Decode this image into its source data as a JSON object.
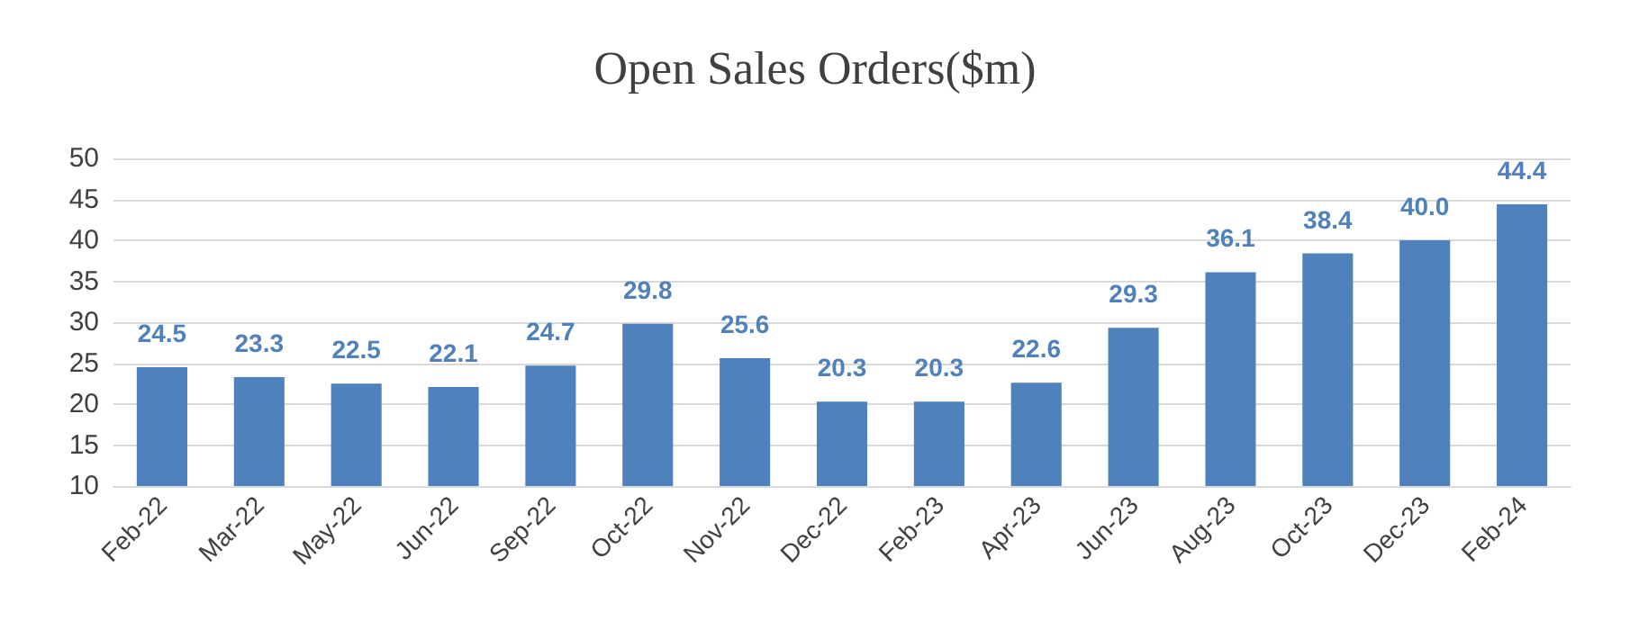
{
  "chart_data": {
    "type": "bar",
    "title": "Open Sales Orders($m)",
    "categories": [
      "Feb-22",
      "Mar-22",
      "May-22",
      "Jun-22",
      "Sep-22",
      "Oct-22",
      "Nov-22",
      "Dec-22",
      "Feb-23",
      "Apr-23",
      "Jun-23",
      "Aug-23",
      "Oct-23",
      "Dec-23",
      "Feb-24"
    ],
    "values": [
      24.5,
      23.3,
      22.5,
      22.1,
      24.7,
      29.8,
      25.6,
      20.3,
      20.3,
      22.6,
      29.3,
      36.1,
      38.4,
      40.0,
      44.4
    ],
    "value_labels": [
      "24.5",
      "23.3",
      "22.5",
      "22.1",
      "24.7",
      "29.8",
      "25.6",
      "20.3",
      "20.3",
      "22.6",
      "29.3",
      "36.1",
      "38.4",
      "40.0",
      "44.4"
    ],
    "color": "#4f81bd",
    "ylim": [
      10,
      50
    ],
    "yticks": [
      10,
      15,
      20,
      25,
      30,
      35,
      40,
      45,
      50
    ],
    "grid": "y"
  }
}
